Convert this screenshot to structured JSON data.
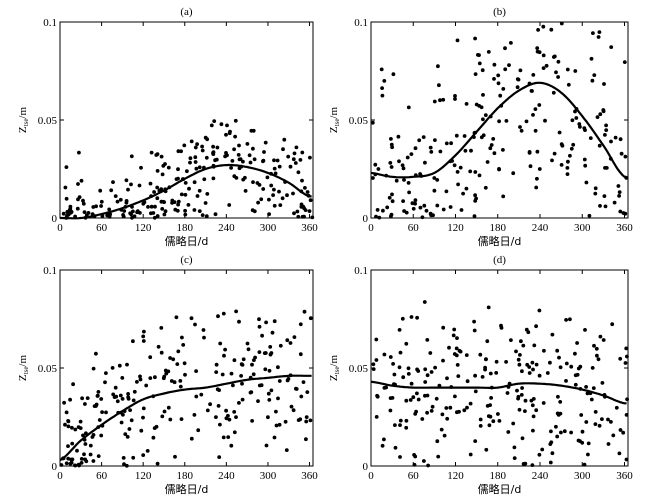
{
  "chart_data": [
    {
      "type": "scatter",
      "title": "(a)",
      "xlabel": "儒略日/d",
      "ylabel": "Z_tse/m",
      "xlim": [
        0,
        365
      ],
      "ylim": [
        0,
        0.1
      ],
      "xticks": [
        0,
        60,
        120,
        180,
        240,
        300,
        360
      ],
      "yticks": [
        0,
        0.05,
        0.1
      ],
      "ytick_labels": [
        "0",
        "0.05",
        "0.1"
      ],
      "fit_x": [
        0,
        30,
        60,
        90,
        120,
        150,
        180,
        210,
        240,
        270,
        300,
        330,
        360
      ],
      "fit_y": [
        0.0,
        0.0,
        0.002,
        0.005,
        0.009,
        0.014,
        0.02,
        0.025,
        0.027,
        0.026,
        0.023,
        0.018,
        0.011
      ],
      "amp": 0.026,
      "scatter_max": 0.05,
      "npts": 260,
      "seed": 11
    },
    {
      "type": "scatter",
      "title": "(b)",
      "xlabel": "儒略日/d",
      "ylabel": "Z_tse/m",
      "xlim": [
        0,
        365
      ],
      "ylim": [
        0,
        0.1
      ],
      "xticks": [
        0,
        60,
        120,
        180,
        240,
        300,
        360
      ],
      "yticks": [
        0,
        0.05,
        0.1
      ],
      "ytick_labels": [
        "0",
        "0.05",
        "0.1"
      ],
      "fit_x": [
        0,
        30,
        60,
        90,
        120,
        150,
        180,
        210,
        240,
        270,
        300,
        330,
        360
      ],
      "fit_y": [
        0.023,
        0.021,
        0.021,
        0.023,
        0.032,
        0.044,
        0.056,
        0.065,
        0.069,
        0.064,
        0.052,
        0.037,
        0.021
      ],
      "amp": 0.06,
      "scatter_max": 0.1,
      "npts": 260,
      "seed": 23
    },
    {
      "type": "scatter",
      "title": "(c)",
      "xlabel": "儒略日/d",
      "ylabel": "Z_tse/m",
      "xlim": [
        0,
        365
      ],
      "ylim": [
        0,
        0.1
      ],
      "xticks": [
        0,
        60,
        120,
        180,
        240,
        300,
        360
      ],
      "yticks": [
        0,
        0.05,
        0.1
      ],
      "ytick_labels": [
        "0",
        "0.05",
        "0.1"
      ],
      "fit_x": [
        0,
        30,
        60,
        90,
        120,
        150,
        180,
        210,
        240,
        270,
        300,
        330,
        360
      ],
      "fit_y": [
        0.003,
        0.013,
        0.021,
        0.028,
        0.034,
        0.037,
        0.039,
        0.04,
        0.042,
        0.044,
        0.045,
        0.046,
        0.046
      ],
      "amp": 0.04,
      "scatter_max": 0.08,
      "npts": 260,
      "seed": 37
    },
    {
      "type": "scatter",
      "title": "(d)",
      "xlabel": "儒略日/d",
      "ylabel": "Z_tse/m",
      "xlim": [
        0,
        365
      ],
      "ylim": [
        0,
        0.1
      ],
      "xticks": [
        0,
        60,
        120,
        180,
        240,
        300,
        360
      ],
      "yticks": [
        0,
        0.05,
        0.1
      ],
      "ytick_labels": [
        "0",
        "0.05",
        "0.1"
      ],
      "fit_x": [
        0,
        30,
        60,
        90,
        120,
        150,
        180,
        210,
        240,
        270,
        300,
        330,
        360
      ],
      "fit_y": [
        0.043,
        0.041,
        0.04,
        0.04,
        0.04,
        0.04,
        0.04,
        0.042,
        0.042,
        0.041,
        0.039,
        0.036,
        0.032
      ],
      "amp": 0.045,
      "scatter_max": 0.1,
      "npts": 260,
      "seed": 53
    }
  ]
}
